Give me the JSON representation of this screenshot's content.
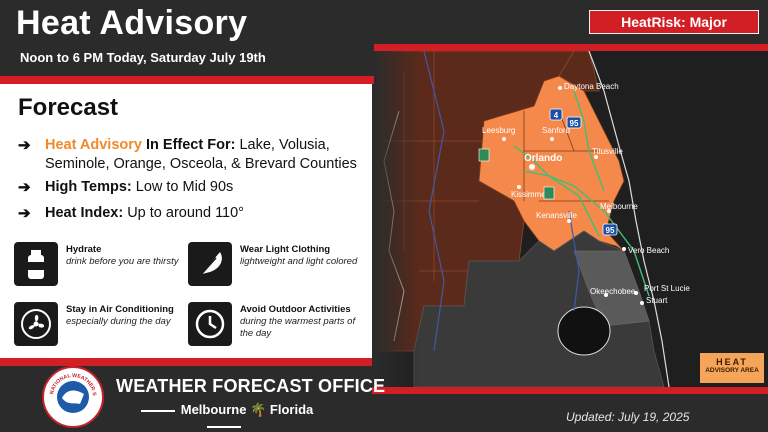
{
  "header": {
    "title": "Heat Advisory",
    "subtitle": "Noon to 6 PM Today, Saturday July 19th",
    "heatrisk": "HeatRisk: Major"
  },
  "forecast": {
    "title": "Forecast",
    "bullets": [
      {
        "lead_highlight": "Heat Advisory",
        "lead": " In Effect For:",
        "text": " Lake, Volusia, Seminole, Orange, Osceola, & Brevard Counties"
      },
      {
        "lead": "High Temps:",
        "text": " Low to Mid 90s"
      },
      {
        "lead": "Heat Index:",
        "text": " Up to around 110°"
      }
    ],
    "arrow": "➔"
  },
  "tips": [
    {
      "title": "Hydrate",
      "sub": "drink before you are thirsty",
      "icon": "water-bottle-icon"
    },
    {
      "title": "Wear Light Clothing",
      "sub": "lightweight and light colored",
      "icon": "feather-icon"
    },
    {
      "title": "Stay in Air Conditioning",
      "sub": "especially during the day",
      "icon": "ac-fan-icon"
    },
    {
      "title": "Avoid Outdoor Activities",
      "sub": "during the warmest parts of the day",
      "icon": "clock-icon"
    }
  ],
  "map": {
    "cities": [
      "Daytona Beach",
      "Leesburg",
      "Sanford",
      "Titusville",
      "Orlando",
      "Kissimmee",
      "Kenansville",
      "Melbourne",
      "Vero Beach",
      "Okeechobee",
      "Port St Lucie",
      "Stuart"
    ],
    "shields": [
      "4",
      "95",
      "95"
    ],
    "advisory_color": "#f5894c",
    "legend_line1": "HEAT",
    "legend_line2": "ADVISORY AREA"
  },
  "footer": {
    "office": "WEATHER FORECAST OFFICE",
    "city": "Melbourne",
    "state": "Florida",
    "updated": "Updated: July 19, 2025",
    "seal_text": "NATIONAL WEATHER SERVICE"
  },
  "colors": {
    "accent_red": "#d21f26",
    "highlight_orange": "#f08a2c",
    "advisory_orange": "#f5894c",
    "brown": "#5c2a1a"
  }
}
